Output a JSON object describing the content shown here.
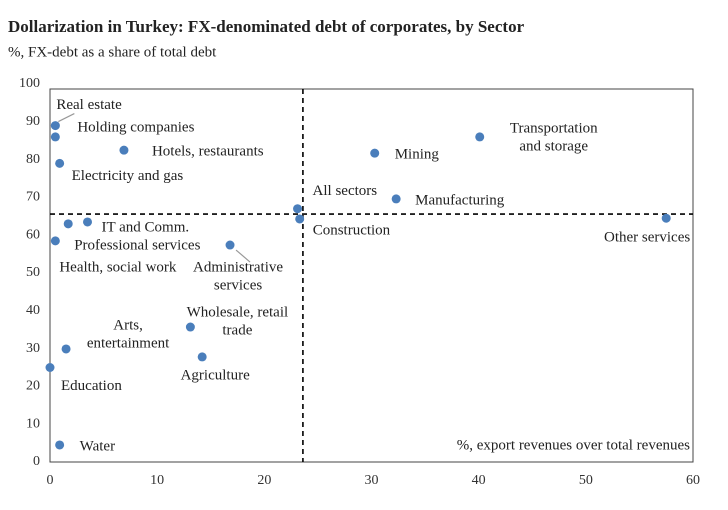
{
  "chart_data": {
    "type": "scatter",
    "title": "Dollarization in Turkey: FX-denominated debt of corporates, by Sector",
    "subtitle": "%, FX-debt as a share of total debt",
    "annotation": "%, export revenues over total revenues",
    "color": "#4a7ebb",
    "xlim": [
      0,
      60
    ],
    "ylim": [
      0,
      100
    ],
    "xticks": [
      0,
      10,
      20,
      30,
      40,
      50,
      60
    ],
    "yticks": [
      0,
      10,
      20,
      30,
      40,
      50,
      60,
      70,
      80,
      90,
      100
    ],
    "vline": 23.6,
    "hline": 65.6,
    "labels": [
      [
        "Real estate"
      ],
      [
        "Holding companies"
      ],
      [
        "Hotels, restaurants"
      ],
      [
        "Electricity and gas"
      ],
      [
        "IT and Comm."
      ],
      [
        "Professional services"
      ],
      [
        "Health, social work"
      ],
      [
        "Administrative",
        "services"
      ],
      [
        "Wholesale, retail",
        "trade"
      ],
      [
        "Agriculture"
      ],
      [
        "Arts,",
        "entertainment"
      ],
      [
        "Education"
      ],
      [
        "Water"
      ],
      [
        "All sectors"
      ],
      [
        "Construction"
      ],
      [
        "Mining"
      ],
      [
        "Manufacturing"
      ],
      [
        "Transportation",
        "and storage"
      ],
      [
        "Other services"
      ]
    ],
    "x": [
      0.5,
      0.5,
      6.9,
      0.9,
      3.5,
      1.7,
      0.5,
      16.8,
      13.1,
      14.2,
      1.5,
      0,
      0.9,
      23.1,
      23.3,
      30.3,
      32.3,
      40.1,
      57.5
    ],
    "y": [
      89,
      86,
      82.5,
      79,
      63.5,
      63,
      58.5,
      57.4,
      35.7,
      27.8,
      29.9,
      25,
      4.5,
      67,
      64.3,
      81.7,
      69.6,
      86,
      64.5
    ]
  }
}
